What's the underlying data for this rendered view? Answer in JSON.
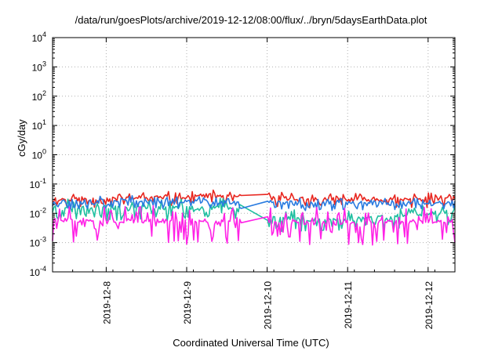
{
  "chart_data": {
    "type": "line",
    "title": "/data/run/goesPlots/archive/2019-12-12/08:00/flux/../bryn/5daysEarthData.plot",
    "xlabel": "Coordinated Universal Time (UTC)",
    "ylabel": "cGy/day",
    "yscale": "log",
    "ylim": [
      0.0001,
      10000
    ],
    "y_ticks": [
      {
        "value": 0.0001,
        "mantissa": "10",
        "exp": "-4"
      },
      {
        "value": 0.001,
        "mantissa": "10",
        "exp": "-3"
      },
      {
        "value": 0.01,
        "mantissa": "10",
        "exp": "-2"
      },
      {
        "value": 0.1,
        "mantissa": "10",
        "exp": "-1"
      },
      {
        "value": 1,
        "mantissa": "10",
        "exp": "0"
      },
      {
        "value": 10,
        "mantissa": "10",
        "exp": "1"
      },
      {
        "value": 100,
        "mantissa": "10",
        "exp": "2"
      },
      {
        "value": 1000,
        "mantissa": "10",
        "exp": "3"
      },
      {
        "value": 10000,
        "mantissa": "10",
        "exp": "4"
      }
    ],
    "xlim": [
      "2019-12-07T08:00",
      "2019-12-12T08:00"
    ],
    "x_ticks": [
      "2019-12-8",
      "2019-12-9",
      "2019-12-10",
      "2019-12-11",
      "2019-12-12"
    ],
    "grid": true,
    "series": [
      {
        "color": "#e8261f",
        "base": 0.03,
        "spread": 0.6,
        "seed": 11,
        "gaps": [
          [
            "2019-12-09T16:30",
            "2019-12-09T23:50"
          ]
        ],
        "points": [
          [
            "2019-12-07T08:00",
            0.03
          ],
          [
            "2019-12-08T12:00",
            0.035
          ],
          [
            "2019-12-09T06:00",
            0.04
          ],
          [
            "2019-12-10T12:00",
            0.03
          ],
          [
            "2019-12-11T12:00",
            0.03
          ],
          [
            "2019-12-12T08:00",
            0.032
          ]
        ]
      },
      {
        "color": "#1fbfa0",
        "base": 0.016,
        "spread": 0.9,
        "seed": 23,
        "gaps": [
          [
            "2019-12-09T16:30",
            "2019-12-09T23:50"
          ]
        ],
        "points": [
          [
            "2019-12-07T08:00",
            0.016
          ],
          [
            "2019-12-08T12:00",
            0.015
          ],
          [
            "2019-12-09T12:00",
            0.016
          ],
          [
            "2019-12-10T00:00",
            0.007
          ],
          [
            "2019-12-11T00:00",
            0.006
          ],
          [
            "2019-12-12T08:00",
            0.012
          ]
        ]
      },
      {
        "color": "#2a7be0",
        "base": 0.024,
        "spread": 0.5,
        "seed": 37,
        "gaps": [
          [
            "2019-12-09T16:30",
            "2019-12-09T23:50"
          ]
        ],
        "points": [
          [
            "2019-12-07T08:00",
            0.025
          ],
          [
            "2019-12-08T12:00",
            0.027
          ],
          [
            "2019-12-09T12:00",
            0.025
          ],
          [
            "2019-12-10T12:00",
            0.022
          ],
          [
            "2019-12-11T12:00",
            0.022
          ],
          [
            "2019-12-12T08:00",
            0.024
          ]
        ]
      },
      {
        "color": "#ff22e6",
        "base": 0.006,
        "spread": 1.6,
        "seed": 51,
        "gaps": [
          [
            "2019-12-09T16:30",
            "2019-12-09T23:50"
          ]
        ],
        "points": [
          [
            "2019-12-07T08:00",
            0.006
          ],
          [
            "2019-12-08T12:00",
            0.0055
          ],
          [
            "2019-12-09T12:00",
            0.0055
          ],
          [
            "2019-12-10T12:00",
            0.0048
          ],
          [
            "2019-12-11T12:00",
            0.005
          ],
          [
            "2019-12-12T08:00",
            0.0055
          ]
        ]
      }
    ]
  }
}
